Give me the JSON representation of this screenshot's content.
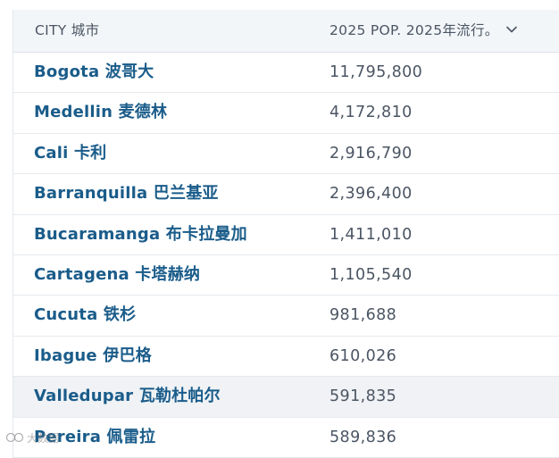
{
  "header": {
    "city": "CITY  城市",
    "population": "2025 POP.  2025年流行。"
  },
  "rows": [
    {
      "city": "Bogota  波哥大",
      "population": "11,795,800"
    },
    {
      "city": "Medellin  麦德林",
      "population": "4,172,810"
    },
    {
      "city": "Cali  卡利",
      "population": "2,916,790"
    },
    {
      "city": "Barranquilla  巴兰基亚",
      "population": "2,396,400"
    },
    {
      "city": "Bucaramanga  布卡拉曼加",
      "population": "1,411,010"
    },
    {
      "city": "Cartagena  卡塔赫纳",
      "population": "1,105,540"
    },
    {
      "city": "Cucuta  铁杉",
      "population": "981,688"
    },
    {
      "city": "Ibague  伊巴格",
      "population": "610,026"
    },
    {
      "city": "Valledupar  瓦勒杜帕尔",
      "population": "591,835"
    },
    {
      "city": "Pereira  佩雷拉",
      "population": "589,836"
    }
  ],
  "watermark": {
    "text": "大数据"
  },
  "icons": {
    "sort": "chevron-down-icon",
    "watermark": "logo-icon"
  },
  "colors": {
    "city_text": "#1a5c8a",
    "header_bg": "#f3f6f9",
    "highlight_row": "#f0f2f5"
  }
}
